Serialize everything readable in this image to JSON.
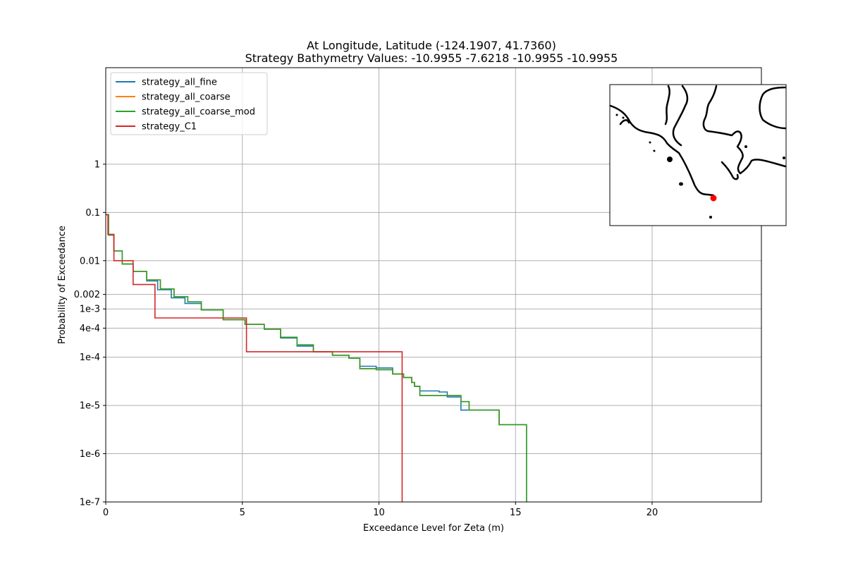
{
  "chart_data": {
    "type": "line",
    "title": "At Longitude, Latitude (-124.1907,  41.7360)",
    "subtitle": "Strategy Bathymetry Values:  -10.9955   -7.6218  -10.9955  -10.9955",
    "xlabel": "Exceedance Level for Zeta (m)",
    "ylabel": "Probability of Exceedance",
    "xlim": [
      0,
      24
    ],
    "ylim": [
      1e-07,
      100
    ],
    "yscale": "log",
    "grid": true,
    "legend_position": "upper-left",
    "xticks": [
      0,
      5,
      10,
      15,
      20
    ],
    "yticks": [
      {
        "value": 1,
        "label": "1"
      },
      {
        "value": 0.1,
        "label": "0.1"
      },
      {
        "value": 0.01,
        "label": "0.01"
      },
      {
        "value": 0.002,
        "label": "0.002"
      },
      {
        "value": 0.001,
        "label": "1e-3"
      },
      {
        "value": 0.0004,
        "label": "4e-4"
      },
      {
        "value": 0.0001,
        "label": "1e-4"
      },
      {
        "value": 1e-05,
        "label": "1e-5"
      },
      {
        "value": 1e-06,
        "label": "1e-6"
      },
      {
        "value": 1e-07,
        "label": "1e-7"
      }
    ],
    "series": [
      {
        "name": "strategy_all_fine",
        "color": "#1f77b4",
        "x": [
          0,
          0.1,
          0.3,
          0.6,
          1.0,
          1.5,
          1.9,
          2.4,
          2.9,
          3.5,
          4.3,
          5.1,
          5.8,
          6.4,
          7.0,
          7.6,
          8.3,
          8.9,
          9.3,
          9.9,
          10.5,
          10.9,
          11.2,
          11.3,
          11.5,
          12.2,
          12.5,
          13.0,
          13.4,
          14.2,
          14.4,
          15.4,
          15.4
        ],
        "y": [
          0.09,
          0.035,
          0.016,
          0.0085,
          0.006,
          0.0038,
          0.0025,
          0.0017,
          0.0013,
          0.00095,
          0.0006,
          0.00048,
          0.00038,
          0.00025,
          0.00017,
          0.00013,
          0.00011,
          9.5e-05,
          6.5e-05,
          6e-05,
          4.5e-05,
          3.8e-05,
          3e-05,
          2.5e-05,
          2e-05,
          1.9e-05,
          1.5e-05,
          8e-06,
          8e-06,
          8e-06,
          4e-06,
          4e-06,
          1e-07
        ]
      },
      {
        "name": "strategy_all_coarse",
        "color": "#ff7f0e",
        "x": [
          0,
          0.1,
          0.3,
          0.6,
          1.0,
          1.5,
          2.0,
          2.5,
          3.0,
          3.5,
          4.3,
          5.1,
          5.8,
          6.4,
          7.0,
          7.6,
          8.3,
          8.9,
          9.3,
          9.9,
          10.5,
          10.9,
          11.2,
          11.3,
          11.5,
          12.0,
          13.0,
          13.3,
          14.2,
          14.4,
          15.4,
          15.4
        ],
        "y": [
          0.09,
          0.034,
          0.016,
          0.0086,
          0.006,
          0.004,
          0.0026,
          0.0018,
          0.0014,
          0.00095,
          0.0006,
          0.00048,
          0.00038,
          0.00026,
          0.00018,
          0.00013,
          0.00011,
          9.5e-05,
          5.8e-05,
          5.5e-05,
          4.5e-05,
          3.8e-05,
          3e-05,
          2.5e-05,
          1.6e-05,
          1.6e-05,
          1.2e-05,
          8e-06,
          8e-06,
          4e-06,
          4e-06,
          1e-07
        ]
      },
      {
        "name": "strategy_all_coarse_mod",
        "color": "#2ca02c",
        "x": [
          0,
          0.1,
          0.3,
          0.6,
          1.0,
          1.5,
          2.0,
          2.5,
          3.0,
          3.5,
          4.3,
          5.1,
          5.8,
          6.4,
          7.0,
          7.6,
          8.3,
          8.9,
          9.3,
          9.9,
          10.5,
          10.9,
          11.2,
          11.3,
          11.5,
          12.0,
          13.0,
          13.3,
          14.2,
          14.4,
          15.4,
          15.4
        ],
        "y": [
          0.09,
          0.034,
          0.016,
          0.0086,
          0.006,
          0.004,
          0.0026,
          0.0018,
          0.0014,
          0.00095,
          0.0006,
          0.00048,
          0.00038,
          0.00026,
          0.00018,
          0.00013,
          0.00011,
          9.5e-05,
          5.8e-05,
          5.5e-05,
          4.5e-05,
          3.8e-05,
          3e-05,
          2.5e-05,
          1.6e-05,
          1.6e-05,
          1.2e-05,
          8e-06,
          8e-06,
          4e-06,
          4e-06,
          1e-07
        ]
      },
      {
        "name": "strategy_C1",
        "color": "#d62728",
        "step": true,
        "x": [
          0,
          0.08,
          0.3,
          1.0,
          1.8,
          5.15,
          10.85,
          10.85
        ],
        "y": [
          0.09,
          0.035,
          0.01,
          0.0032,
          0.00065,
          0.00013,
          3.5e-05,
          1e-07
        ]
      }
    ]
  },
  "inset_map": {
    "marker_color": "#ff0000"
  }
}
